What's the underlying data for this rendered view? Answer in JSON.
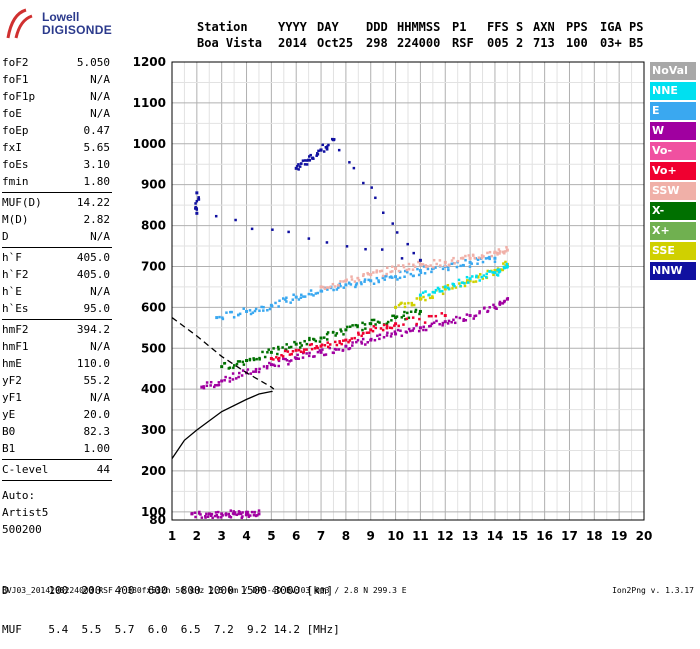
{
  "logo": {
    "line1": "Lowell",
    "line2": "DIGISONDE"
  },
  "header": {
    "columns": [
      "Station",
      "YYYY",
      "DAY",
      "DDD",
      "HHMMSS",
      "P1",
      "FFS",
      "S",
      "AXN",
      "PPS",
      "IGA",
      "PS"
    ],
    "values": [
      "Boa Vista",
      "2014",
      "Oct25",
      "298",
      "224000",
      "RSF",
      "005",
      "2",
      "713",
      "100",
      "03+",
      "B5"
    ]
  },
  "params": [
    {
      "k": "foF2",
      "v": "5.050"
    },
    {
      "k": "foF1",
      "v": "N/A"
    },
    {
      "k": "foF1p",
      "v": "N/A"
    },
    {
      "k": "foE",
      "v": "N/A"
    },
    {
      "k": "foEp",
      "v": "0.47"
    },
    {
      "k": "fxI",
      "v": "5.65"
    },
    {
      "k": "foEs",
      "v": "3.10"
    },
    {
      "k": "fmin",
      "v": "1.80"
    },
    {
      "k": "MUF(D)",
      "v": "14.22"
    },
    {
      "k": "M(D)",
      "v": "2.82"
    },
    {
      "k": "D",
      "v": "N/A"
    },
    {
      "k": "h`F",
      "v": "405.0"
    },
    {
      "k": "h`F2",
      "v": "405.0"
    },
    {
      "k": "h`E",
      "v": "N/A"
    },
    {
      "k": "h`Es",
      "v": "95.0"
    },
    {
      "k": "hmF2",
      "v": "394.2"
    },
    {
      "k": "hmF1",
      "v": "N/A"
    },
    {
      "k": "hmE",
      "v": "110.0"
    },
    {
      "k": "yF2",
      "v": "55.2"
    },
    {
      "k": "yF1",
      "v": "N/A"
    },
    {
      "k": "yE",
      "v": "20.0"
    },
    {
      "k": "B0",
      "v": "82.3"
    },
    {
      "k": "B1",
      "v": "1.00"
    },
    {
      "k": "C-level",
      "v": "44"
    }
  ],
  "auto": {
    "l1": "Auto:",
    "l2": "Artist5",
    "l3": "500200"
  },
  "legend": [
    {
      "label": "NoVal",
      "color": "#a8a8a8"
    },
    {
      "label": "NNE",
      "color": "#00e0f0"
    },
    {
      "label": "E",
      "color": "#3aa8f0"
    },
    {
      "label": "W",
      "color": "#a000a0"
    },
    {
      "label": "Vo-",
      "color": "#f050a0"
    },
    {
      "label": "Vo+",
      "color": "#f00030"
    },
    {
      "label": "SSW",
      "color": "#f0b0a8"
    },
    {
      "label": "X-",
      "color": "#007000"
    },
    {
      "label": "X+",
      "color": "#70b050"
    },
    {
      "label": "SSE",
      "color": "#d0d000"
    },
    {
      "label": "NNW",
      "color": "#1010a0"
    }
  ],
  "bottom": {
    "d_line": "D      100  200  400  600  800 1000 1500 3000 [km]",
    "muf_line": "MUF    5.4  5.5  5.7  6.0  6.5  7.2  9.2 14.2 [MHz]"
  },
  "footer": {
    "left": "BVJ03_2014298224000.RSF / 380fx512h 50 kHz 2.5 km / DPS-4D BVJ03 003 / 2.8 N 299.3 E",
    "right": "Ion2Png v. 1.3.17"
  },
  "chart_data": {
    "type": "scatter",
    "xlabel": "",
    "ylabel": "",
    "xlim": [
      1,
      20
    ],
    "ylim": [
      80,
      1200
    ],
    "x_ticks": [
      1,
      2,
      3,
      4,
      5,
      6,
      7,
      8,
      9,
      10,
      11,
      12,
      13,
      14,
      15,
      16,
      17,
      18,
      19,
      20
    ],
    "y_ticks": [
      80,
      100,
      200,
      300,
      400,
      500,
      600,
      700,
      800,
      900,
      1000,
      1100,
      1200
    ],
    "grid": true,
    "series": [
      {
        "name": "W",
        "color": "#a000a0",
        "points": [
          [
            2.2,
            405
          ],
          [
            3,
            420
          ],
          [
            4,
            440
          ],
          [
            5,
            460
          ],
          [
            6,
            475
          ],
          [
            7,
            490
          ],
          [
            8,
            505
          ],
          [
            9,
            520
          ],
          [
            10,
            535
          ],
          [
            11,
            550
          ],
          [
            12,
            565
          ],
          [
            13,
            580
          ],
          [
            14,
            600
          ],
          [
            14.5,
            620
          ]
        ]
      },
      {
        "name": "E",
        "color": "#3aa8f0",
        "points": [
          [
            2.8,
            575
          ],
          [
            4,
            590
          ],
          [
            5,
            605
          ],
          [
            6,
            625
          ],
          [
            7,
            640
          ],
          [
            8,
            655
          ],
          [
            9,
            665
          ],
          [
            10,
            675
          ],
          [
            11,
            690
          ],
          [
            12,
            700
          ],
          [
            13,
            710
          ],
          [
            14,
            720
          ]
        ]
      },
      {
        "name": "SSW",
        "color": "#f0b0a8",
        "points": [
          [
            7,
            650
          ],
          [
            8,
            665
          ],
          [
            9,
            680
          ],
          [
            10,
            695
          ],
          [
            11,
            705
          ],
          [
            12,
            710
          ],
          [
            13,
            720
          ],
          [
            14,
            735
          ],
          [
            14.5,
            740
          ]
        ]
      },
      {
        "name": "X-",
        "color": "#007000",
        "points": [
          [
            3,
            455
          ],
          [
            4,
            470
          ],
          [
            5,
            490
          ],
          [
            6,
            510
          ],
          [
            7,
            525
          ],
          [
            8,
            545
          ],
          [
            9,
            560
          ],
          [
            10,
            575
          ],
          [
            11,
            590
          ]
        ]
      },
      {
        "name": "SSE",
        "color": "#d0d000",
        "points": [
          [
            10,
            600
          ],
          [
            11,
            620
          ],
          [
            12,
            645
          ],
          [
            13,
            665
          ],
          [
            14,
            690
          ],
          [
            14.5,
            705
          ]
        ]
      },
      {
        "name": "NNE",
        "color": "#00e0f0",
        "points": [
          [
            11,
            630
          ],
          [
            12,
            650
          ],
          [
            13,
            670
          ],
          [
            14,
            685
          ],
          [
            14.5,
            700
          ]
        ]
      },
      {
        "name": "NNW",
        "color": "#1010a0",
        "points": [
          [
            6,
            940
          ],
          [
            6.5,
            960
          ],
          [
            7,
            985
          ],
          [
            7.5,
            1010
          ],
          [
            11,
            715
          ],
          [
            2,
            830
          ],
          [
            2,
            880
          ]
        ]
      },
      {
        "name": "Vo+",
        "color": "#f00030",
        "points": [
          [
            5,
            475
          ],
          [
            6,
            495
          ],
          [
            7,
            505
          ],
          [
            8,
            520
          ],
          [
            9,
            545
          ],
          [
            10,
            560
          ],
          [
            12,
            580
          ]
        ]
      },
      {
        "name": "Es",
        "color": "#a000a0",
        "points": [
          [
            1.8,
            95
          ],
          [
            2.5,
            95
          ],
          [
            3,
            95
          ],
          [
            3.5,
            95
          ],
          [
            4,
            95
          ],
          [
            4.5,
            95
          ]
        ]
      }
    ],
    "profile_line": [
      [
        1,
        230
      ],
      [
        1.5,
        275
      ],
      [
        2,
        300
      ],
      [
        3,
        345
      ],
      [
        4,
        375
      ],
      [
        4.5,
        388
      ],
      [
        5,
        394.2
      ],
      [
        5.05,
        394.2
      ]
    ],
    "dashed_line": [
      [
        1,
        575
      ],
      [
        2,
        530
      ],
      [
        3,
        480
      ],
      [
        4,
        440
      ],
      [
        5,
        405
      ],
      [
        5.1,
        400
      ]
    ]
  }
}
